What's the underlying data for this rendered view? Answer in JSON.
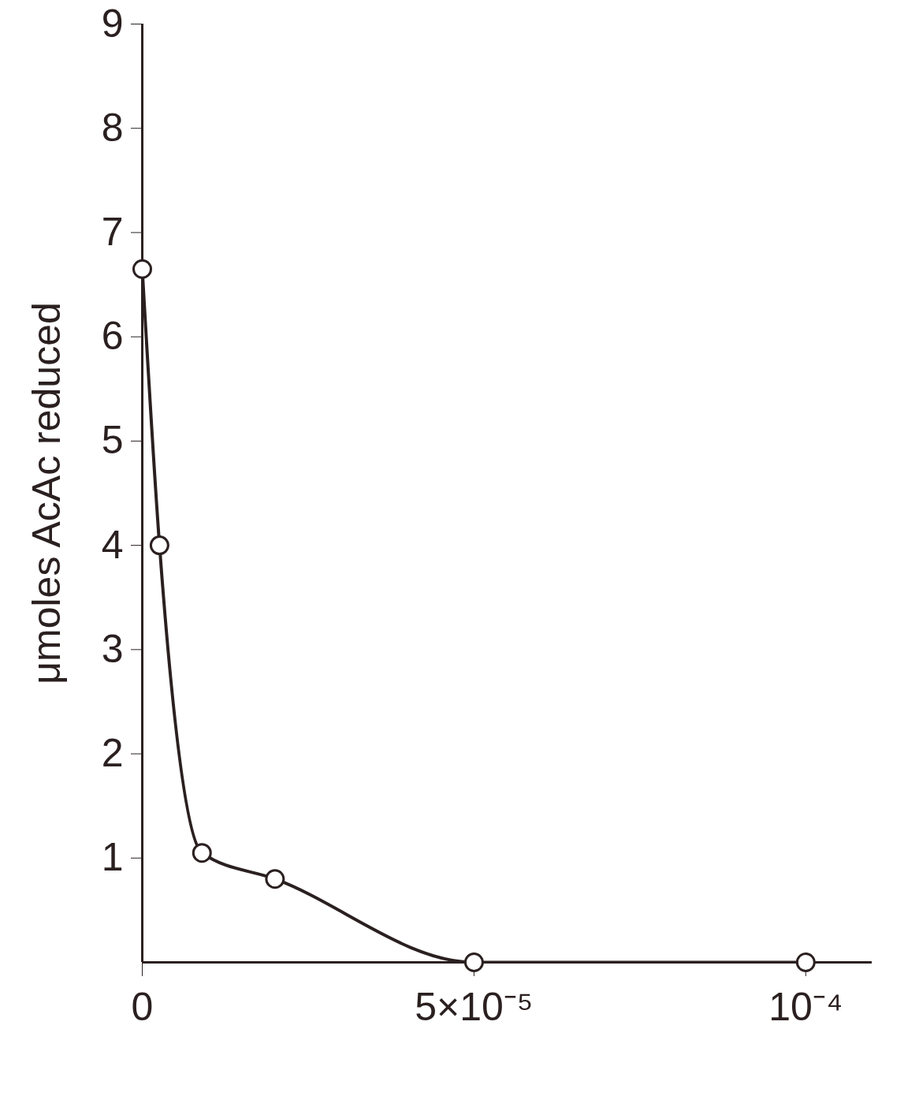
{
  "chart_data": {
    "type": "line",
    "y_label": "μmoles AcAc reduced",
    "x": [
      0,
      2.6e-06,
      9e-06,
      2e-05,
      5e-05,
      0.0001
    ],
    "values": [
      6.65,
      4.0,
      1.05,
      0.8,
      0,
      0
    ],
    "color": "#2b2020",
    "marker": "open_circle",
    "line_style": "solid",
    "xlim": [
      0,
      0.00011
    ],
    "xticks": [
      0,
      {
        "value": 5e-05,
        "label": "5×10⁻⁵"
      },
      {
        "value": 0.0001,
        "label": "10⁻⁴"
      }
    ],
    "ylim": [
      0,
      9
    ],
    "yticks": [
      1,
      2,
      3,
      4,
      5,
      6,
      7,
      8,
      9
    ],
    "grid": false
  }
}
